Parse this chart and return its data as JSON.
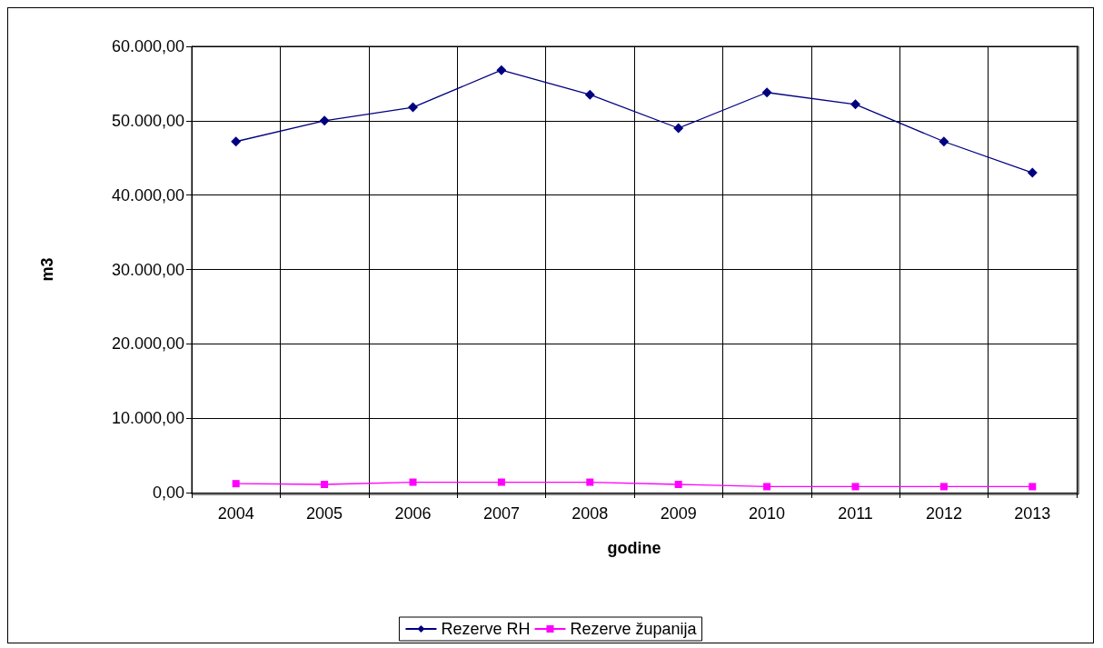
{
  "chart_data": {
    "type": "line",
    "xlabel": "godine",
    "ylabel": "m3",
    "categories": [
      "2004",
      "2005",
      "2006",
      "2007",
      "2008",
      "2009",
      "2010",
      "2011",
      "2012",
      "2013"
    ],
    "series": [
      {
        "name": "Rezerve RH",
        "color": "#000080",
        "marker": "diamond",
        "values": [
          47200,
          50000,
          51800,
          56800,
          53500,
          49000,
          53800,
          52200,
          47200,
          43000
        ]
      },
      {
        "name": "Rezerve županija",
        "color": "#ff00ff",
        "marker": "square",
        "values": [
          1200,
          1100,
          1400,
          1400,
          1400,
          1100,
          800,
          800,
          800,
          800
        ]
      }
    ],
    "ylim": [
      0,
      60000
    ],
    "yticks": [
      {
        "value": 0,
        "label": "0,00"
      },
      {
        "value": 10000,
        "label": "10.000,00"
      },
      {
        "value": 20000,
        "label": "20.000,00"
      },
      {
        "value": 30000,
        "label": "30.000,00"
      },
      {
        "value": 40000,
        "label": "40.000,00"
      },
      {
        "value": 50000,
        "label": "50.000,00"
      },
      {
        "value": 60000,
        "label": "60.000,00"
      }
    ],
    "grid": true,
    "legend": "bottom",
    "line_style": "solid"
  }
}
